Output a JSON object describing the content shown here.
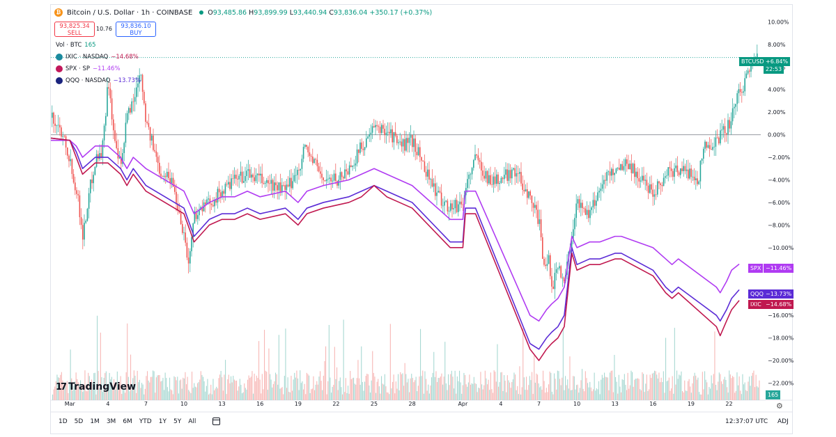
{
  "header": {
    "symbol_icon": "bitcoin-icon",
    "title": "Bitcoin / U.S. Dollar · 1h · COINBASE",
    "open_label": "O",
    "open": "93,485.86",
    "high_label": "H",
    "high": "93,899.99",
    "low_label": "L",
    "low": "93,440.94",
    "close_label": "C",
    "close": "93,836.04",
    "change": "+350.17 (+0.37%)"
  },
  "trade": {
    "sell_price": "93,825.34",
    "sell_label": "SELL",
    "spread": "10.76",
    "buy_price": "93,836.10",
    "buy_label": "BUY"
  },
  "legend": {
    "volume_label": "Vol · BTC",
    "volume_value": "165",
    "ixic_label": "IXIC · NASDAQ",
    "ixic_value": "−14.68%",
    "spx_label": "SPX · SP",
    "spx_value": "−11.46%",
    "qqq_label": "QQQ · NASDAQ",
    "qqq_value": "−13.73%"
  },
  "tags": {
    "btc_name": "BTCUSD",
    "btc_value": "+6.84%",
    "btc_timer": "22:53",
    "spx_name": "SPX",
    "spx_value": "−11.46%",
    "qqq_name": "QQQ",
    "qqq_value": "−13.73%",
    "ixic_name": "IXIC",
    "ixic_value": "−14.68%",
    "vol_value": "165"
  },
  "colors": {
    "up": "#26a69a",
    "down": "#ef5350",
    "spx": "#b03bf2",
    "qqq": "#5b2bd6",
    "ixic": "#c0184f",
    "vol_up": "#a7d8d2",
    "vol_down": "#f7b7b5"
  },
  "logo": {
    "icon": "tradingview-logo-icon",
    "text": "TradingView"
  },
  "range_buttons": [
    "1D",
    "5D",
    "1M",
    "3M",
    "6M",
    "YTD",
    "1Y",
    "5Y",
    "All"
  ],
  "footer": {
    "clock": "12:37:07 UTC",
    "adj": "ADJ"
  },
  "chart_data": {
    "type": "line",
    "y_axis": {
      "ticks": [
        "10.00%",
        "8.00%",
        "6.00%",
        "4.00%",
        "2.00%",
        "0.00%",
        "−2.00%",
        "−4.00%",
        "−6.00%",
        "−8.00%",
        "−10.00%",
        "−12.00%",
        "−14.00%",
        "−16.00%",
        "−18.00%",
        "−20.00%",
        "−22.00%"
      ],
      "values": [
        10,
        8,
        6,
        4,
        2,
        0,
        -2,
        -4,
        -6,
        -8,
        -10,
        -12,
        -14,
        -16,
        -18,
        -20,
        -22
      ],
      "ylim": [
        -23.2,
        10.7
      ]
    },
    "x_axis": {
      "ticks": [
        "Mar",
        "4",
        "7",
        "10",
        "13",
        "16",
        "19",
        "22",
        "25",
        "28",
        "Apr",
        "4",
        "7",
        "10",
        "13",
        "16",
        "19",
        "22"
      ],
      "values": [
        1,
        4,
        7,
        10,
        13,
        16,
        19,
        22,
        25,
        28,
        32,
        35,
        38,
        41,
        44,
        47,
        50,
        53
      ],
      "xlim": [
        -0.5,
        55.5
      ],
      "unit": "day (Mar 1 = 1)"
    },
    "series": [
      {
        "name": "BTCUSD",
        "style": "candles",
        "x": [
          -0.5,
          0.5,
          1.5,
          2,
          2.5,
          3,
          3.5,
          4,
          4.5,
          5,
          5.5,
          6,
          6.5,
          7,
          8,
          9,
          10,
          10.3,
          10.8,
          12,
          13,
          14,
          15,
          16,
          17,
          18,
          19,
          19.5,
          20,
          21,
          22,
          23,
          24,
          25,
          26,
          27,
          28,
          29,
          30,
          31,
          32,
          32.3,
          33,
          34,
          35,
          36,
          37,
          37.5,
          38,
          38.3,
          38.7,
          39,
          39.5,
          40,
          40.5,
          41,
          42,
          43,
          44,
          45,
          46,
          47,
          48,
          49,
          50,
          50.5,
          51,
          52,
          53,
          53.5,
          54,
          54.5,
          55
        ],
        "values": [
          1.5,
          0,
          -5,
          -9,
          -5,
          -2,
          -1.5,
          5,
          -1,
          -3,
          2,
          3,
          6,
          1,
          -3,
          -4,
          -9,
          -11.5,
          -7,
          -6,
          -5,
          -4,
          -3.5,
          -4,
          -4.5,
          -5,
          -3,
          -1,
          -2,
          -4,
          -4,
          -3,
          -1,
          0.5,
          0.5,
          -1,
          -0.5,
          -3,
          -5.5,
          -6.5,
          -6,
          -4,
          -2,
          -4,
          -4,
          -3,
          -5,
          -6,
          -8,
          -12,
          -11,
          -13.5,
          -11.5,
          -13,
          -9,
          -6,
          -7,
          -4,
          -3,
          -2.5,
          -4,
          -5,
          -3.5,
          -3,
          -3.5,
          -4,
          -1,
          -0.5,
          1,
          3,
          4,
          6,
          6.84
        ]
      },
      {
        "name": "SPX",
        "x": [
          -0.5,
          1,
          1.5,
          2,
          3,
          4,
          5,
          5.5,
          6,
          7,
          10,
          10.8,
          12,
          13,
          14,
          15,
          16,
          18,
          19,
          19.7,
          21,
          23,
          24,
          25,
          26,
          27,
          28,
          31,
          32,
          32.2,
          33,
          37.3,
          38,
          38.6,
          39,
          39.5,
          40,
          40.6,
          41,
          42,
          42.8,
          44,
          44.5,
          47,
          48,
          48.5,
          49,
          52,
          52.3,
          52.8,
          53.2,
          53.8
        ],
        "values": [
          -0.5,
          -0.5,
          -1,
          -2,
          -1,
          -1,
          -2,
          -3,
          -2,
          -3,
          -5,
          -7,
          -6,
          -5.5,
          -5.5,
          -5,
          -5.5,
          -5,
          -6,
          -5,
          -4.5,
          -4,
          -3.5,
          -3,
          -3.5,
          -4,
          -4.5,
          -7.5,
          -7.5,
          -5,
          -5,
          -16,
          -16.5,
          -15.5,
          -15,
          -14.5,
          -13.5,
          -9,
          -10,
          -9.5,
          -9.5,
          -9,
          -9,
          -10,
          -11,
          -11.5,
          -11,
          -13.5,
          -14,
          -13,
          -12,
          -11.46
        ]
      },
      {
        "name": "QQQ",
        "x": [
          -0.5,
          1,
          1.5,
          2,
          3,
          4,
          5,
          5.5,
          6,
          7,
          10,
          10.8,
          12,
          13,
          14,
          15,
          16,
          18,
          19,
          19.7,
          21,
          23,
          24,
          25,
          26,
          27,
          28,
          31,
          32,
          32.2,
          33,
          37.3,
          38,
          38.6,
          39,
          39.5,
          40,
          40.6,
          41,
          42,
          42.8,
          44,
          44.5,
          47,
          48,
          48.5,
          49,
          52,
          52.3,
          52.8,
          53.2,
          53.8
        ],
        "values": [
          -0.3,
          -0.5,
          -1.5,
          -3,
          -2,
          -2,
          -3,
          -4,
          -3,
          -4.5,
          -6.5,
          -9,
          -7.5,
          -7,
          -7,
          -6.5,
          -7,
          -6.5,
          -7.5,
          -6.5,
          -6,
          -5.5,
          -5,
          -4.5,
          -5,
          -5.5,
          -6,
          -9.5,
          -9.5,
          -6.5,
          -6.5,
          -18.5,
          -19,
          -18,
          -17.5,
          -17,
          -16,
          -10,
          -11.5,
          -11,
          -11,
          -10.5,
          -10.5,
          -12,
          -13.5,
          -14,
          -13.5,
          -16,
          -16.5,
          -15.5,
          -14.5,
          -13.73
        ]
      },
      {
        "name": "IXIC",
        "x": [
          -0.5,
          1,
          1.5,
          2,
          3,
          4,
          5,
          5.5,
          6,
          7,
          10,
          10.8,
          12,
          13,
          14,
          15,
          16,
          18,
          19,
          19.7,
          21,
          23,
          24,
          25,
          26,
          27,
          28,
          31,
          32,
          32.2,
          33,
          37.3,
          38,
          38.6,
          39,
          39.5,
          40,
          40.6,
          41,
          42,
          42.8,
          44,
          44.5,
          47,
          48,
          48.5,
          49,
          52,
          52.3,
          52.8,
          53.2,
          53.8
        ],
        "values": [
          -0.3,
          -0.5,
          -2,
          -3.5,
          -2.5,
          -2.5,
          -3.5,
          -4.5,
          -3.5,
          -5,
          -7,
          -9.5,
          -8,
          -7.5,
          -7.5,
          -7,
          -7.5,
          -7,
          -8,
          -7,
          -6.5,
          -6,
          -5.5,
          -4.5,
          -5.5,
          -6,
          -6.5,
          -10,
          -10,
          -7,
          -7,
          -19,
          -20,
          -19,
          -18.5,
          -18,
          -17,
          -10.5,
          -12,
          -11.5,
          -11.5,
          -11,
          -11,
          -12.5,
          -14,
          -14.5,
          -14,
          -17,
          -17.8,
          -16.5,
          -15.5,
          -14.68
        ]
      }
    ],
    "volume": {
      "label": "Vol · BTC",
      "last": 165
    },
    "grid": false,
    "zero_line": true,
    "legend_placement": "top-left"
  }
}
